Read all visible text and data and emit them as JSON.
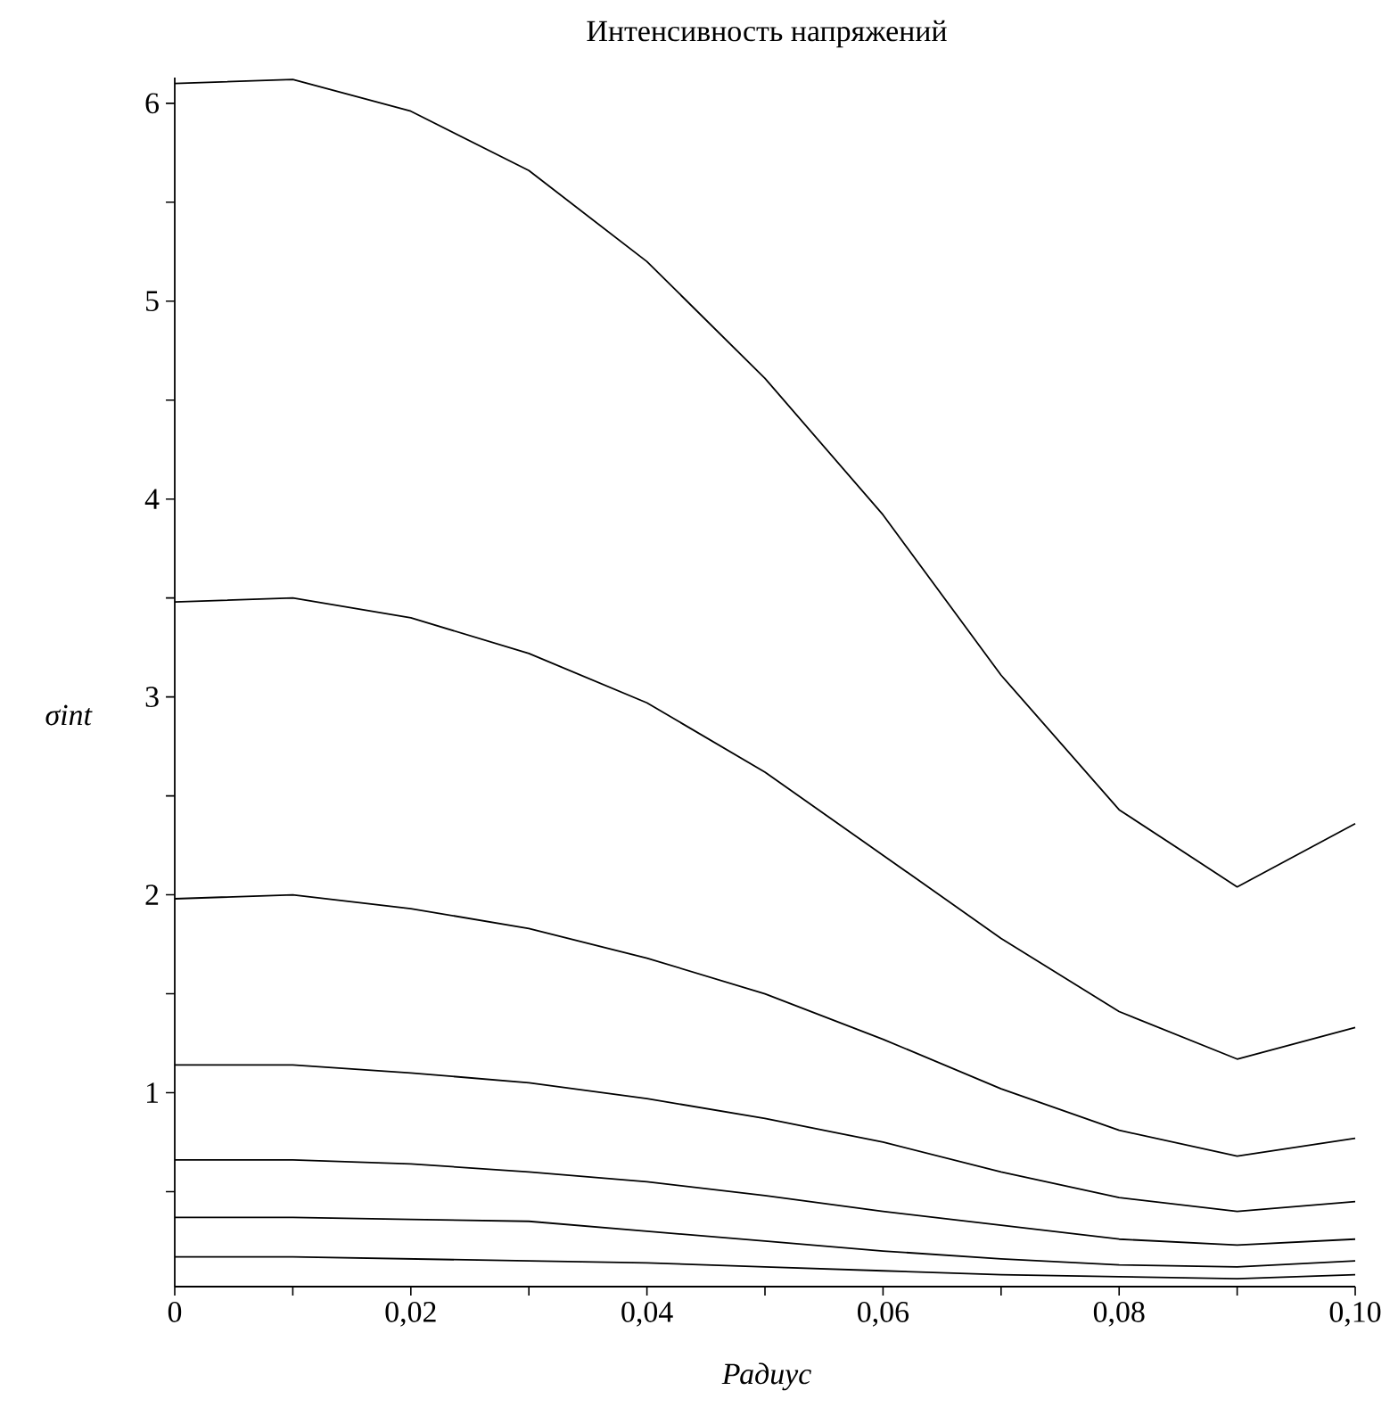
{
  "chart_data": {
    "type": "line",
    "title": "Интенсивность напряжений",
    "xlabel": "Радиус",
    "ylabel": "σint",
    "x": [
      0,
      0.01,
      0.02,
      0.03,
      0.04,
      0.05,
      0.06,
      0.07,
      0.08,
      0.09,
      0.1
    ],
    "series": [
      {
        "color": "#000000",
        "values": [
          6.1,
          6.12,
          5.96,
          5.66,
          5.2,
          4.61,
          3.92,
          3.11,
          2.43,
          2.04,
          2.36
        ]
      },
      {
        "color": "#000000",
        "values": [
          3.48,
          3.5,
          3.4,
          3.22,
          2.97,
          2.62,
          2.2,
          1.78,
          1.41,
          1.17,
          1.33
        ]
      },
      {
        "color": "#000000",
        "values": [
          1.98,
          2.0,
          1.93,
          1.83,
          1.68,
          1.5,
          1.27,
          1.02,
          0.81,
          0.68,
          0.77
        ]
      },
      {
        "color": "#000000",
        "values": [
          1.14,
          1.14,
          1.1,
          1.05,
          0.97,
          0.87,
          0.75,
          0.6,
          0.47,
          0.4,
          0.45
        ]
      },
      {
        "color": "#000000",
        "values": [
          0.66,
          0.66,
          0.64,
          0.6,
          0.55,
          0.48,
          0.4,
          0.33,
          0.26,
          0.23,
          0.26
        ]
      },
      {
        "color": "#000000",
        "values": [
          0.37,
          0.37,
          0.36,
          0.35,
          0.3,
          0.25,
          0.2,
          0.16,
          0.13,
          0.12,
          0.15
        ]
      },
      {
        "color": "#000000",
        "values": [
          0.17,
          0.17,
          0.16,
          0.15,
          0.14,
          0.12,
          0.1,
          0.08,
          0.07,
          0.06,
          0.08
        ]
      }
    ],
    "xlim": [
      0,
      0.1
    ],
    "ylim": [
      0.02,
      6.13
    ],
    "xticks": [
      {
        "value": 0,
        "label": "0"
      },
      {
        "value": 0.01,
        "label": null
      },
      {
        "value": 0.02,
        "label": "0,02"
      },
      {
        "value": 0.03,
        "label": null
      },
      {
        "value": 0.04,
        "label": "0,04"
      },
      {
        "value": 0.05,
        "label": null
      },
      {
        "value": 0.06,
        "label": "0,06"
      },
      {
        "value": 0.07,
        "label": null
      },
      {
        "value": 0.08,
        "label": "0,08"
      },
      {
        "value": 0.09,
        "label": null
      },
      {
        "value": 0.1,
        "label": "0,10"
      }
    ],
    "yticks": [
      {
        "value": 0.5,
        "label": null
      },
      1,
      {
        "value": 1.5,
        "label": null
      },
      2,
      {
        "value": 2.5,
        "label": null
      },
      3,
      {
        "value": 3.5,
        "label": null
      },
      4,
      {
        "value": 4.5,
        "label": null
      },
      5,
      {
        "value": 5.5,
        "label": null
      },
      6
    ],
    "grid": false,
    "marker": "none",
    "line_style": "solid"
  }
}
